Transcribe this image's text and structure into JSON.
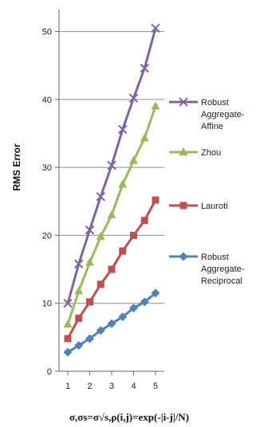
{
  "chart_data": {
    "type": "line",
    "title": "",
    "xlabel": "σ,σs=σ√s,ρ(i,j)=exp(-|i-j|/N)",
    "ylabel": "RMS Error",
    "x": [
      1,
      2,
      3,
      4,
      5
    ],
    "x_tick_labels": [
      "1",
      "2",
      "3",
      "4",
      "5"
    ],
    "xlim": [
      0.6,
      5.4
    ],
    "ylim": [
      0,
      53
    ],
    "y_ticks": [
      0,
      10,
      20,
      30,
      40,
      50
    ],
    "y_tick_labels": [
      "0",
      "10",
      "20",
      "30",
      "40",
      "50"
    ],
    "grid": "horizontal",
    "legend_position": "right",
    "series": [
      {
        "name": "Robust Aggregate-Affine",
        "legend_lines": [
          "Robust",
          "Aggregate-",
          "Affine"
        ],
        "color": "#8064a2",
        "marker": "x",
        "x": [
          1,
          1.5,
          2,
          2.5,
          3,
          3.5,
          4,
          4.5,
          5
        ],
        "values": [
          10.0,
          15.8,
          20.8,
          25.7,
          30.3,
          35.6,
          40.2,
          44.6,
          50.5
        ]
      },
      {
        "name": "Zhou",
        "legend_lines": [
          "Zhou"
        ],
        "color": "#9bbb59",
        "marker": "triangle",
        "x": [
          1,
          1.5,
          2,
          2.5,
          3,
          3.5,
          4,
          4.5,
          5
        ],
        "values": [
          6.9,
          11.8,
          16.0,
          19.8,
          23.0,
          27.5,
          31.0,
          34.3,
          39.0
        ]
      },
      {
        "name": "Lauroti",
        "legend_lines": [
          "Lauroti"
        ],
        "color": "#c0504d",
        "marker": "square",
        "x": [
          1,
          1.5,
          2,
          2.5,
          3,
          3.5,
          4,
          4.5,
          5
        ],
        "values": [
          4.8,
          7.8,
          10.2,
          12.8,
          15.0,
          17.7,
          20.0,
          22.2,
          25.2
        ]
      },
      {
        "name": "Robust Aggregate-Reciprocal",
        "legend_lines": [
          "Robust",
          "Aggregate-",
          "Reciprocal"
        ],
        "color": "#4f81bd",
        "marker": "diamond",
        "x": [
          1,
          1.5,
          2,
          2.5,
          3,
          3.5,
          4,
          4.5,
          5
        ],
        "values": [
          2.8,
          3.8,
          4.8,
          6.0,
          7.0,
          8.0,
          9.3,
          10.2,
          11.5
        ]
      }
    ]
  }
}
